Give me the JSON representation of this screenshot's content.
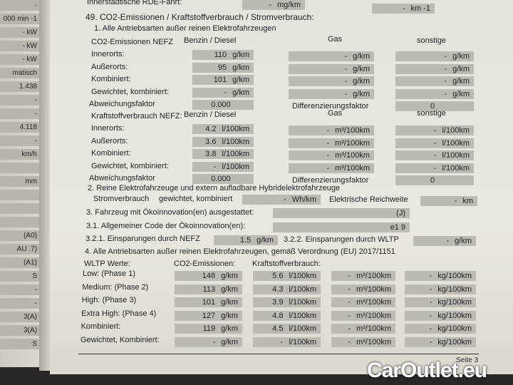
{
  "left_page": {
    "values": [
      "-",
      "000 min -1",
      "- kW",
      "- kW",
      "- kW",
      "matisch",
      "1.438",
      "-",
      "-",
      "4.118",
      "-",
      "km/h",
      "",
      "mm",
      "",
      "",
      "",
      "(A0)",
      "AU .7)",
      "(A1)",
      "S",
      "-",
      "-",
      "3(A)",
      "3(A)",
      "S"
    ]
  },
  "header_row": {
    "label": "Innerstädtische RDE-Fahrt:",
    "box1": {
      "value": "-",
      "unit": "mg/km"
    },
    "box2": {
      "value": "-",
      "unit": "km -1"
    }
  },
  "title": "49. CO2-Emissionen / Kraftstoffverbrauch / Stromverbrauch:",
  "section1": {
    "title": "1. Alle Antriebsarten außer reinen Elektrofahrzeugen",
    "co2": {
      "heading": "CO2-Emissionen NEFZ",
      "cols": [
        "Benzin / Diesel",
        "Gas",
        "sonstige"
      ],
      "rows": [
        {
          "label": "Innerorts:",
          "benzin": "110",
          "gas": "-",
          "sonstige": "-"
        },
        {
          "label": "Außerorts:",
          "benzin": "95",
          "gas": "-",
          "sonstige": "-"
        },
        {
          "label": "Kombiniert:",
          "benzin": "101",
          "gas": "-",
          "sonstige": "-"
        },
        {
          "label": "Gewichtet, kombiniert:",
          "benzin": "-",
          "gas": "-",
          "sonstige": "-"
        }
      ],
      "units": [
        "g/km",
        "g/km",
        "g/km"
      ],
      "abweichung_label": "Abweichungsfaktor",
      "abweichung": "0.000",
      "diff_label": "Differenzierungsfaktor",
      "diff": "0"
    },
    "fuel": {
      "heading": "Kraftstoffverbrauch NEFZ:",
      "cols": [
        "Benzin / Diesel",
        "Gas",
        "sonstige"
      ],
      "rows": [
        {
          "label": "Innerorts:",
          "benzin": "4.2",
          "gas": "-",
          "sonstige": "-"
        },
        {
          "label": "Außerorts:",
          "benzin": "3.6",
          "gas": "-",
          "sonstige": "-"
        },
        {
          "label": "Kombiniert:",
          "benzin": "3.8",
          "gas": "-",
          "sonstige": "-"
        },
        {
          "label": "Gewichtet, kombiniert:",
          "benzin": "-",
          "gas": "-",
          "sonstige": "-"
        }
      ],
      "units": [
        "l/100km",
        "m³/100km",
        "l/100km"
      ],
      "abweichung_label": "Abweichungsfaktor",
      "abweichung": "0.000",
      "diff_label": "Differenzierungsfaktor",
      "diff": "0"
    }
  },
  "section2": {
    "title": "2. Reine Elektrofahrzeuge und extern aufladbare Hybridelektrofahrzeuge",
    "strom_label": "Stromverbrauch",
    "strom_sub": "gewichtet, kombiniert",
    "strom_value": "-",
    "strom_unit": "Wh/km",
    "range_label": "Elektrische Reichweite",
    "range_value": "-",
    "range_unit": "km"
  },
  "section3": {
    "label": "3. Fahrzeug mit Ökoinnovation(en) ausgestattet:",
    "value": "(J)",
    "code_label": "3.1. Allgemeiner Code der Ökoinnovation(en):",
    "code": "e1 9",
    "nefz_label": "3.2.1. Einsparungen durch NEFZ",
    "nefz_value": "1.5",
    "nefz_unit": "g/km",
    "wltp_label": "3.2.2. Einsparungen durch WLTP",
    "wltp_value": "-",
    "wltp_unit": "g/km"
  },
  "section4": {
    "title": "4. Alle Antriebsarten außer reinen Elektrofahrzeugen, gemäß Verordnung (EU) 2017/1151",
    "col_label": "WLTP Werte:",
    "co2_heading": "CO2-Emissionen:",
    "fuel_heading": "Kraftstoffverbrauch:",
    "units": [
      "g/km",
      "l/100km",
      "m³/100km",
      "kg/100km"
    ],
    "rows": [
      {
        "label": "Low: (Phase 1)",
        "co2": "148",
        "fuel": "5.6",
        "gas": "-",
        "kg": "-"
      },
      {
        "label": "Medium: (Phase 2)",
        "co2": "113",
        "fuel": "4.3",
        "gas": "-",
        "kg": "-"
      },
      {
        "label": "High: (Phase 3)",
        "co2": "101",
        "fuel": "3.9",
        "gas": "-",
        "kg": "-"
      },
      {
        "label": "Extra High: (Phase 4)",
        "co2": "127",
        "fuel": "4.8",
        "gas": "-",
        "kg": "-"
      },
      {
        "label": "Kombiniert:",
        "co2": "119",
        "fuel": "4.5",
        "gas": "-",
        "kg": "-"
      },
      {
        "label": "Gewichtet, Kombiniert:",
        "co2": "-",
        "fuel": "-",
        "gas": "-",
        "kg": "-"
      }
    ]
  },
  "footer": {
    "page": "Seite 3"
  },
  "watermark": "CarOutlet.eu"
}
